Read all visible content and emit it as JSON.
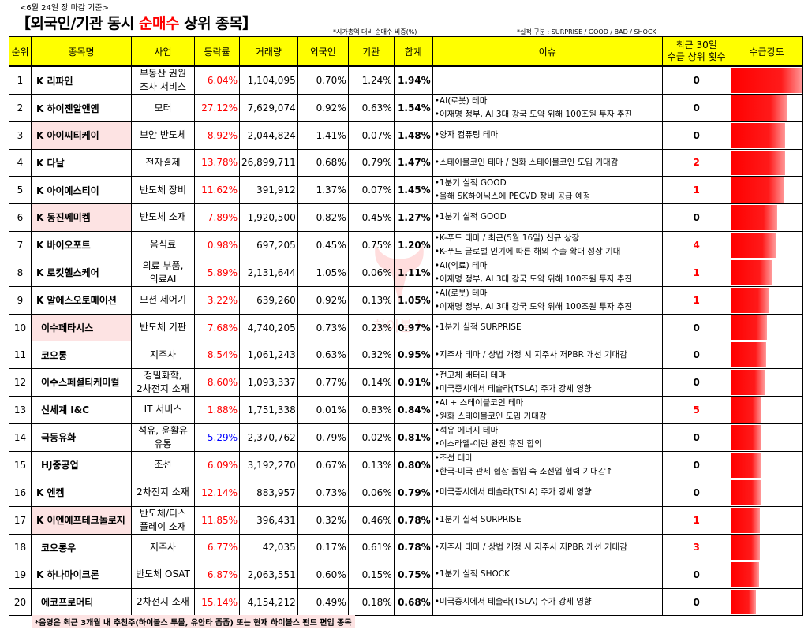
{
  "header": {
    "date_note": "<6월 24일 장 마감 기준>",
    "title_prefix": "【외국인/기관 동시 ",
    "title_highlight": "순매수",
    "title_suffix": " 상위 종목】",
    "note_ratio": "*시가총액 대비 순매수 비중(%)",
    "note_perf": "*실적 구분 : SURPRISE / GOOD / BAD / SHOCK"
  },
  "columns": [
    "순위",
    "종목명",
    "사업",
    "등락률",
    "거래량",
    "외국인",
    "기관",
    "합계",
    "이슈",
    "최근 30일 수급 상위 횟수",
    "수급강도"
  ],
  "columns_count_line1": "최근 30일",
  "columns_count_line2": "수급 상위 횟수",
  "rows": [
    {
      "rank": "1",
      "name": "K 리파인",
      "pink": false,
      "indent": false,
      "biz1": "부동산 권원",
      "biz2": "조사 서비스",
      "chg": "6.04%",
      "dir": "up",
      "vol": "1,104,095",
      "foreign": "0.70%",
      "inst": "1.24%",
      "sum": "1.94%",
      "issue1": "",
      "issue2": "",
      "count": "0",
      "countRed": false,
      "strength": 1.0
    },
    {
      "rank": "2",
      "name": "K 하이젠알앤엠",
      "pink": false,
      "indent": false,
      "biz1": "모터",
      "biz2": "",
      "chg": "27.12%",
      "dir": "up",
      "vol": "7,629,074",
      "foreign": "0.92%",
      "inst": "0.63%",
      "sum": "1.54%",
      "issue1": "•AI(로봇) 테마",
      "issue2": "•이재명 정부, AI 3대 강국 도약 위해 100조원 투자 추진",
      "count": "0",
      "countRed": false,
      "strength": 0.79
    },
    {
      "rank": "3",
      "name": "K 아이씨티케이",
      "pink": true,
      "indent": false,
      "biz1": "보안 반도체",
      "biz2": "",
      "chg": "8.92%",
      "dir": "up",
      "vol": "2,044,824",
      "foreign": "1.41%",
      "inst": "0.07%",
      "sum": "1.48%",
      "issue1": "•양자 컴퓨팅 테마",
      "issue2": "",
      "count": "0",
      "countRed": false,
      "strength": 0.76
    },
    {
      "rank": "4",
      "name": "K 다날",
      "pink": false,
      "indent": false,
      "biz1": "전자결제",
      "biz2": "",
      "chg": "13.78%",
      "dir": "up",
      "vol": "26,899,711",
      "foreign": "0.68%",
      "inst": "0.79%",
      "sum": "1.47%",
      "issue1": "•스테이블코인 테마 / 원화 스테이블코인 도입 기대감",
      "issue2": "",
      "count": "2",
      "countRed": true,
      "strength": 0.76
    },
    {
      "rank": "5",
      "name": "K 아이에스티이",
      "pink": false,
      "indent": false,
      "biz1": "반도체 장비",
      "biz2": "",
      "chg": "11.62%",
      "dir": "up",
      "vol": "391,912",
      "foreign": "1.37%",
      "inst": "0.07%",
      "sum": "1.45%",
      "issue1": "•1분기 실적 GOOD",
      "issue2": "•올해 SK하이닉스에 PECVD 장비 공급 예정",
      "count": "1",
      "countRed": true,
      "strength": 0.75
    },
    {
      "rank": "6",
      "name": "K 동진쎄미켐",
      "pink": true,
      "indent": false,
      "biz1": "반도체 소재",
      "biz2": "",
      "chg": "7.89%",
      "dir": "up",
      "vol": "1,920,500",
      "foreign": "0.82%",
      "inst": "0.45%",
      "sum": "1.27%",
      "issue1": "•1분기 실적 GOOD",
      "issue2": "",
      "count": "0",
      "countRed": false,
      "strength": 0.65
    },
    {
      "rank": "7",
      "name": "K 바이오포트",
      "pink": false,
      "indent": false,
      "biz1": "음식료",
      "biz2": "",
      "chg": "0.98%",
      "dir": "up",
      "vol": "697,205",
      "foreign": "0.45%",
      "inst": "0.75%",
      "sum": "1.20%",
      "issue1": "•K-푸드 테마 / 최근(5월 16일) 신규 상장",
      "issue2": "•K-푸드 글로벌 인기에 따른 해외 수출 확대 성장 기대",
      "count": "4",
      "countRed": true,
      "strength": 0.62
    },
    {
      "rank": "8",
      "name": "K 로킷헬스케어",
      "pink": false,
      "indent": false,
      "biz1": "의료 부품,",
      "biz2": "의료AI",
      "chg": "5.89%",
      "dir": "up",
      "vol": "2,131,644",
      "foreign": "1.05%",
      "inst": "0.06%",
      "sum": "1.11%",
      "issue1": "•AI(의료) 테마",
      "issue2": "•이재명 정부, AI 3대 강국 도약 위해 100조원 투자 추진",
      "count": "1",
      "countRed": true,
      "strength": 0.57
    },
    {
      "rank": "9",
      "name": "K 알에스오토메이션",
      "pink": false,
      "indent": false,
      "biz1": "모션 제어기",
      "biz2": "",
      "chg": "3.22%",
      "dir": "up",
      "vol": "639,260",
      "foreign": "0.92%",
      "inst": "0.13%",
      "sum": "1.05%",
      "issue1": "•AI(로봇) 테마",
      "issue2": "•이재명 정부, AI 3대 강국 도약 위해 100조원 투자 추진",
      "count": "1",
      "countRed": true,
      "strength": 0.54
    },
    {
      "rank": "10",
      "name": "이수페타시스",
      "pink": true,
      "indent": true,
      "biz1": "반도체 기판",
      "biz2": "",
      "chg": "7.68%",
      "dir": "up",
      "vol": "4,740,205",
      "foreign": "0.73%",
      "inst": "0.23%",
      "sum": "0.97%",
      "issue1": "•1분기 실적 SURPRISE",
      "issue2": "",
      "count": "0",
      "countRed": false,
      "strength": 0.5
    },
    {
      "rank": "11",
      "name": "코오롱",
      "pink": false,
      "indent": true,
      "biz1": "지주사",
      "biz2": "",
      "chg": "8.54%",
      "dir": "up",
      "vol": "1,061,243",
      "foreign": "0.63%",
      "inst": "0.32%",
      "sum": "0.95%",
      "issue1": "•지주사 테마 / 상법 개정 시 지주사 저PBR 개선 기대감",
      "issue2": "",
      "count": "0",
      "countRed": false,
      "strength": 0.49
    },
    {
      "rank": "12",
      "name": "이수스페셜티케미컬",
      "pink": false,
      "indent": true,
      "biz1": "정밀화학,",
      "biz2": "2차전지 소재",
      "chg": "8.60%",
      "dir": "up",
      "vol": "1,093,337",
      "foreign": "0.77%",
      "inst": "0.14%",
      "sum": "0.91%",
      "issue1": "•전고체 배터리 테마",
      "issue2": "•미국증시에서 테슬라(TSLA) 주가 강세 영향",
      "count": "0",
      "countRed": false,
      "strength": 0.47
    },
    {
      "rank": "13",
      "name": "신세계 I&C",
      "pink": false,
      "indent": true,
      "biz1": "IT 서비스",
      "biz2": "",
      "chg": "1.88%",
      "dir": "up",
      "vol": "1,751,338",
      "foreign": "0.01%",
      "inst": "0.83%",
      "sum": "0.84%",
      "issue1": "•AI + 스테이블코인 테마",
      "issue2": "•원화 스테이블코인 도입 기대감",
      "count": "5",
      "countRed": true,
      "strength": 0.43
    },
    {
      "rank": "14",
      "name": "극동유화",
      "pink": false,
      "indent": true,
      "biz1": "석유, 윤활유",
      "biz2": "유통",
      "chg": "-5.29%",
      "dir": "down",
      "vol": "2,370,762",
      "foreign": "0.79%",
      "inst": "0.02%",
      "sum": "0.81%",
      "issue1": "•석유 에너지 테마",
      "issue2": "•이스라엘-이란 완전 휴전 합의",
      "count": "0",
      "countRed": false,
      "strength": 0.42
    },
    {
      "rank": "15",
      "name": "HJ중공업",
      "pink": false,
      "indent": true,
      "biz1": "조선",
      "biz2": "",
      "chg": "6.09%",
      "dir": "up",
      "vol": "3,192,270",
      "foreign": "0.67%",
      "inst": "0.13%",
      "sum": "0.80%",
      "issue1": "•조선 테마",
      "issue2": "•한국-미국 관세 협상 돌입 속 조선업 협력 기대감↑",
      "count": "0",
      "countRed": false,
      "strength": 0.41
    },
    {
      "rank": "16",
      "name": "K 엔켐",
      "pink": false,
      "indent": false,
      "biz1": "2차전지 소재",
      "biz2": "",
      "chg": "12.14%",
      "dir": "up",
      "vol": "883,957",
      "foreign": "0.73%",
      "inst": "0.06%",
      "sum": "0.79%",
      "issue1": "•미국증시에서 테슬라(TSLA) 주가 강세 영향",
      "issue2": "",
      "count": "0",
      "countRed": false,
      "strength": 0.41
    },
    {
      "rank": "17",
      "name": "K 이엔에프테크놀로지",
      "pink": true,
      "indent": false,
      "biz1": "반도체/디스",
      "biz2": "플레이 소재",
      "chg": "11.85%",
      "dir": "up",
      "vol": "396,431",
      "foreign": "0.32%",
      "inst": "0.46%",
      "sum": "0.78%",
      "issue1": "•1분기 실적 SURPRISE",
      "issue2": "",
      "count": "1",
      "countRed": true,
      "strength": 0.4
    },
    {
      "rank": "18",
      "name": "코오롱우",
      "pink": false,
      "indent": true,
      "biz1": "지주사",
      "biz2": "",
      "chg": "6.77%",
      "dir": "up",
      "vol": "42,035",
      "foreign": "0.17%",
      "inst": "0.61%",
      "sum": "0.78%",
      "issue1": "•지주사 테마 / 상법 개정 시 지주사 저PBR 개선 기대감",
      "issue2": "",
      "count": "3",
      "countRed": true,
      "strength": 0.4
    },
    {
      "rank": "19",
      "name": "K 하나마이크론",
      "pink": false,
      "indent": false,
      "biz1": "반도체 OSAT",
      "biz2": "",
      "chg": "6.87%",
      "dir": "up",
      "vol": "2,063,551",
      "foreign": "0.60%",
      "inst": "0.15%",
      "sum": "0.75%",
      "issue1": "•1분기 실적 SHOCK",
      "issue2": "",
      "count": "0",
      "countRed": false,
      "strength": 0.39
    },
    {
      "rank": "20",
      "name": "에코프로머티",
      "pink": false,
      "indent": true,
      "biz1": "2차전지 소재",
      "biz2": "",
      "chg": "15.14%",
      "dir": "up",
      "vol": "4,154,212",
      "foreign": "0.49%",
      "inst": "0.18%",
      "sum": "0.68%",
      "issue1": "•미국증시에서 테슬라(TSLA) 주가 강세 영향",
      "issue2": "",
      "count": "0",
      "countRed": false,
      "strength": 0.35
    }
  ],
  "footer": "*음영은 최근 3개월 내 추천주(하이볼스 투몰, 유안타 줍줍) 또는 현재 하이볼스 펀드 편입 종목",
  "watermark": "하이볼스",
  "colors": {
    "up": "#ff0000",
    "down": "#0000ff",
    "header_bg": "#ffff00",
    "pink": "#fde3e3",
    "bar": "#ff0000"
  }
}
